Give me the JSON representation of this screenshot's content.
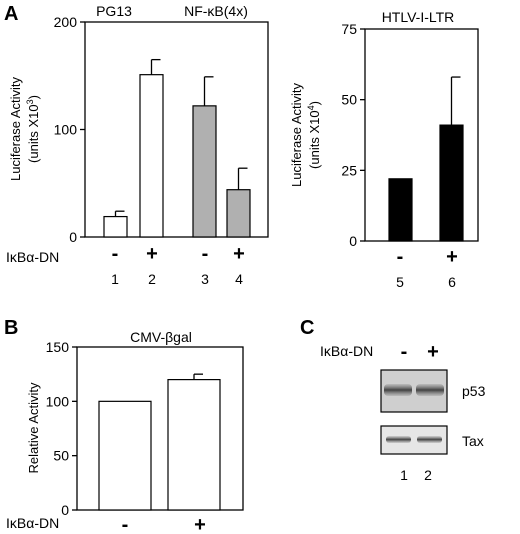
{
  "panels": {
    "A": {
      "letter": "A"
    },
    "B": {
      "letter": "B"
    },
    "C": {
      "letter": "C"
    }
  },
  "chart_data": [
    {
      "type": "bar",
      "panel": "A",
      "groups": [
        "PG13",
        "NF-κB(4x)"
      ],
      "condition_label": "IκBα-DN",
      "signs": [
        "-",
        "+",
        "-",
        "+"
      ],
      "lanes": [
        "1",
        "2",
        "3",
        "4"
      ],
      "values": [
        19,
        151,
        122,
        44
      ],
      "errors": [
        5,
        14,
        27,
        20
      ],
      "colors": [
        "#ffffff",
        "#ffffff",
        "#b0b0b0",
        "#b0b0b0"
      ],
      "ylabel_line1": "Luciferase Activity",
      "ylabel_line2": "(units X10",
      "ylabel_sup": "3",
      "ylabel_end": ")",
      "ylim": [
        0,
        200
      ],
      "yticks": [
        0,
        100,
        200
      ]
    },
    {
      "type": "bar",
      "panel": "A",
      "title": "HTLV-I-LTR",
      "signs": [
        "-",
        "+"
      ],
      "lanes": [
        "5",
        "6"
      ],
      "values": [
        22,
        41
      ],
      "errors": [
        0,
        17
      ],
      "colors": [
        "#000000",
        "#000000"
      ],
      "ylabel_line1": "Luciferase Activity",
      "ylabel_line2": "(units X10",
      "ylabel_sup": "4",
      "ylabel_end": ")",
      "ylim": [
        0,
        75
      ],
      "yticks": [
        0,
        25,
        50,
        75
      ]
    },
    {
      "type": "bar",
      "panel": "B",
      "title": "CMV-βgal",
      "condition_label": "IκBα-DN",
      "signs": [
        "-",
        "+"
      ],
      "values": [
        100,
        120
      ],
      "errors": [
        0,
        5
      ],
      "colors": [
        "#ffffff",
        "#ffffff"
      ],
      "ylabel": "Relative Activity",
      "ylim": [
        0,
        150
      ],
      "yticks": [
        0,
        50,
        100,
        150
      ]
    }
  ],
  "blot": {
    "condition_label": "IκBα-DN",
    "signs": [
      "-",
      "+"
    ],
    "bands": [
      "p53",
      "Tax"
    ],
    "lanes": [
      "1",
      "2"
    ]
  }
}
